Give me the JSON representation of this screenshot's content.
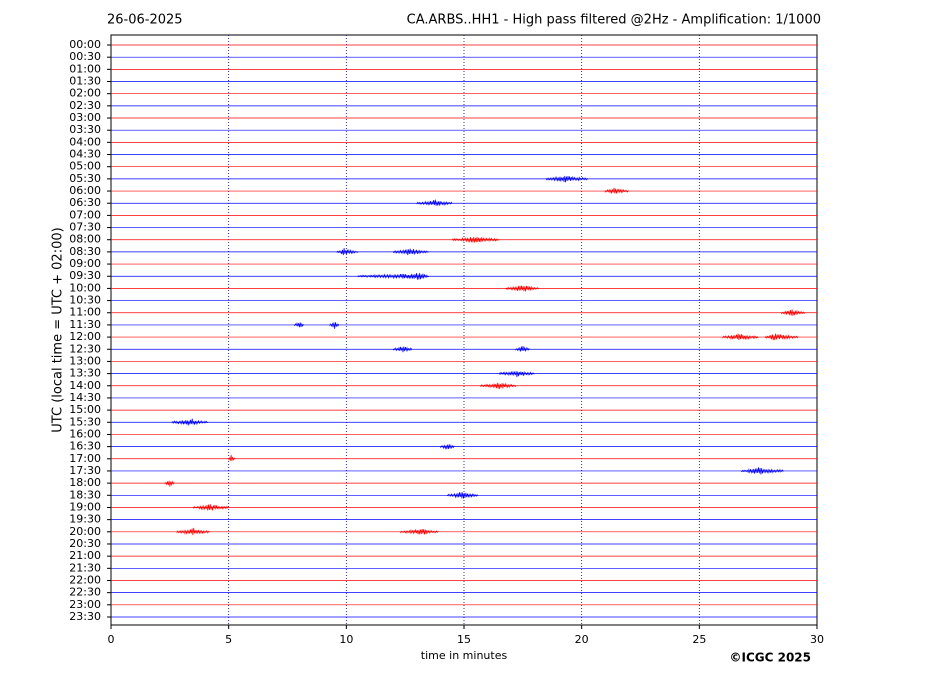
{
  "chart_data": {
    "type": "helicorder",
    "date": "26-06-2025",
    "title": "CA.ARBS..HH1 - High pass filtered @2Hz - Amplification: 1/1000",
    "ylabel": "UTC (local time = UTC + 02:00)",
    "xlabel": "time in minutes",
    "credit": "©ICGC 2025",
    "rows": [
      "00:00",
      "00:30",
      "01:00",
      "01:30",
      "02:00",
      "02:30",
      "03:00",
      "03:30",
      "04:00",
      "04:30",
      "05:00",
      "05:30",
      "06:00",
      "06:30",
      "07:00",
      "07:30",
      "08:00",
      "08:30",
      "09:00",
      "09:30",
      "10:00",
      "10:30",
      "11:00",
      "11:30",
      "12:00",
      "12:30",
      "13:00",
      "13:30",
      "14:00",
      "14:30",
      "15:00",
      "15:30",
      "16:00",
      "16:30",
      "17:00",
      "17:30",
      "18:00",
      "18:30",
      "19:00",
      "19:30",
      "20:00",
      "20:30",
      "21:00",
      "21:30",
      "22:00",
      "22:30",
      "23:00",
      "23:30"
    ],
    "row_colors": [
      "#ff0000",
      "#0000ff"
    ],
    "xlim": [
      0,
      30
    ],
    "xticks": [
      0,
      5,
      10,
      15,
      20,
      25,
      30
    ],
    "grid": true,
    "events": [
      {
        "row": 11,
        "start": 18.5,
        "peak": 19.3,
        "end": 20.3
      },
      {
        "row": 12,
        "start": 21.0,
        "peak": 21.4,
        "end": 22.0
      },
      {
        "row": 13,
        "start": 13.0,
        "peak": 13.8,
        "end": 14.5
      },
      {
        "row": 16,
        "start": 14.5,
        "peak": 15.5,
        "end": 16.5
      },
      {
        "row": 17,
        "start": 9.6,
        "peak": 9.9,
        "end": 10.5
      },
      {
        "row": 17,
        "start": 12.0,
        "peak": 12.7,
        "end": 13.5
      },
      {
        "row": 19,
        "start": 10.5,
        "peak": 13.2,
        "end": 13.5
      },
      {
        "row": 20,
        "start": 16.8,
        "peak": 17.5,
        "end": 18.2
      },
      {
        "row": 22,
        "start": 28.5,
        "peak": 28.9,
        "end": 29.5
      },
      {
        "row": 23,
        "start": 7.8,
        "peak": 8.0,
        "end": 8.2
      },
      {
        "row": 23,
        "start": 9.3,
        "peak": 9.5,
        "end": 9.7
      },
      {
        "row": 24,
        "start": 26.0,
        "peak": 26.7,
        "end": 27.5
      },
      {
        "row": 24,
        "start": 27.8,
        "peak": 28.2,
        "end": 29.2
      },
      {
        "row": 25,
        "start": 12.0,
        "peak": 12.4,
        "end": 12.8
      },
      {
        "row": 25,
        "start": 17.2,
        "peak": 17.5,
        "end": 17.8
      },
      {
        "row": 27,
        "start": 16.5,
        "peak": 17.3,
        "end": 18.0
      },
      {
        "row": 28,
        "start": 15.7,
        "peak": 16.5,
        "end": 17.2
      },
      {
        "row": 31,
        "start": 2.6,
        "peak": 3.4,
        "end": 4.1
      },
      {
        "row": 33,
        "start": 14.0,
        "peak": 14.3,
        "end": 14.6
      },
      {
        "row": 34,
        "start": 5.0,
        "peak": 5.1,
        "end": 5.3
      },
      {
        "row": 35,
        "start": 26.8,
        "peak": 27.5,
        "end": 28.6
      },
      {
        "row": 36,
        "start": 2.3,
        "peak": 2.5,
        "end": 2.7
      },
      {
        "row": 37,
        "start": 14.3,
        "peak": 14.9,
        "end": 15.6
      },
      {
        "row": 38,
        "start": 3.5,
        "peak": 4.2,
        "end": 5.0
      },
      {
        "row": 40,
        "start": 2.8,
        "peak": 3.5,
        "end": 4.2
      },
      {
        "row": 40,
        "start": 12.3,
        "peak": 13.2,
        "end": 13.9
      }
    ]
  }
}
